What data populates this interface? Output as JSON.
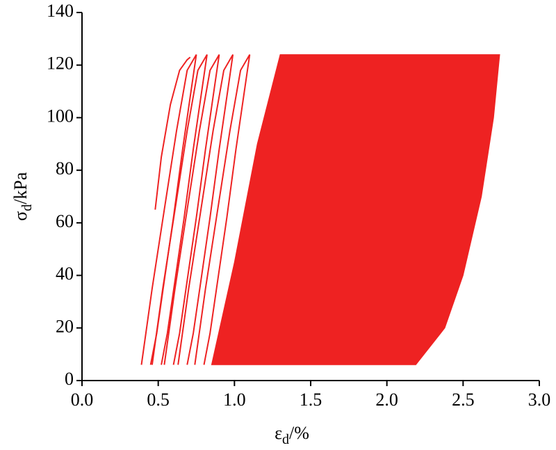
{
  "chart_data": {
    "type": "line",
    "x_label": {
      "symbol": "ε",
      "subscript": "d",
      "unit": "/%"
    },
    "y_label": {
      "symbol": "σ",
      "subscript": "d",
      "unit": "/kPa"
    },
    "xlim": [
      0,
      3
    ],
    "xticks": [
      {
        "value": 0,
        "label": "0.0"
      },
      0.5,
      {
        "value": 1,
        "label": "1.0"
      },
      1.5,
      {
        "value": 2,
        "label": "2.0"
      },
      2.5,
      {
        "value": 3,
        "label": "3.0"
      }
    ],
    "ylim": [
      0,
      140
    ],
    "yticks": [
      0,
      20,
      40,
      60,
      80,
      100,
      120,
      140
    ],
    "series": [
      {
        "color": "#ee2222",
        "fill": true,
        "x": [
          0.85,
          1.0,
          1.15,
          1.3,
          2.74,
          2.7,
          2.62,
          2.5,
          2.38,
          2.19
        ],
        "values": [
          6,
          45,
          90,
          124,
          124,
          100,
          70,
          40,
          20,
          6
        ]
      },
      {
        "color": "#ee2222",
        "fill": false,
        "x": [
          0.48,
          0.52,
          0.58,
          0.64,
          0.69,
          0.71
        ],
        "values": [
          65,
          85,
          105,
          118,
          122,
          123
        ]
      },
      {
        "color": "#ee2222",
        "fill": false,
        "x": [
          0.39,
          0.46,
          0.54,
          0.62,
          0.69,
          0.75,
          0.72,
          0.66,
          0.6,
          0.54,
          0.49,
          0.45
        ],
        "values": [
          6,
          35,
          65,
          95,
          118,
          124,
          112,
          88,
          62,
          38,
          18,
          6
        ]
      },
      {
        "color": "#ee2222",
        "fill": false,
        "x": [
          0.46,
          0.53,
          0.61,
          0.69,
          0.76,
          0.82,
          0.79,
          0.73,
          0.67,
          0.61,
          0.56,
          0.52
        ],
        "values": [
          6,
          35,
          65,
          95,
          118,
          124,
          112,
          88,
          62,
          38,
          18,
          6
        ]
      },
      {
        "color": "#ee2222",
        "fill": false,
        "x": [
          0.54,
          0.61,
          0.69,
          0.77,
          0.84,
          0.9,
          0.87,
          0.81,
          0.75,
          0.69,
          0.64,
          0.6
        ],
        "values": [
          6,
          35,
          65,
          95,
          118,
          124,
          112,
          88,
          62,
          38,
          18,
          6
        ]
      },
      {
        "color": "#ee2222",
        "fill": false,
        "x": [
          0.63,
          0.7,
          0.78,
          0.86,
          0.93,
          0.99,
          0.96,
          0.9,
          0.84,
          0.78,
          0.73,
          0.69
        ],
        "values": [
          6,
          35,
          65,
          95,
          118,
          124,
          112,
          88,
          62,
          38,
          18,
          6
        ]
      },
      {
        "color": "#ee2222",
        "fill": false,
        "x": [
          0.74,
          0.81,
          0.89,
          0.97,
          1.04,
          1.1,
          1.07,
          1.01,
          0.95,
          0.89,
          0.84,
          0.8
        ],
        "values": [
          6,
          35,
          65,
          95,
          118,
          124,
          112,
          88,
          62,
          38,
          18,
          6
        ]
      }
    ]
  }
}
